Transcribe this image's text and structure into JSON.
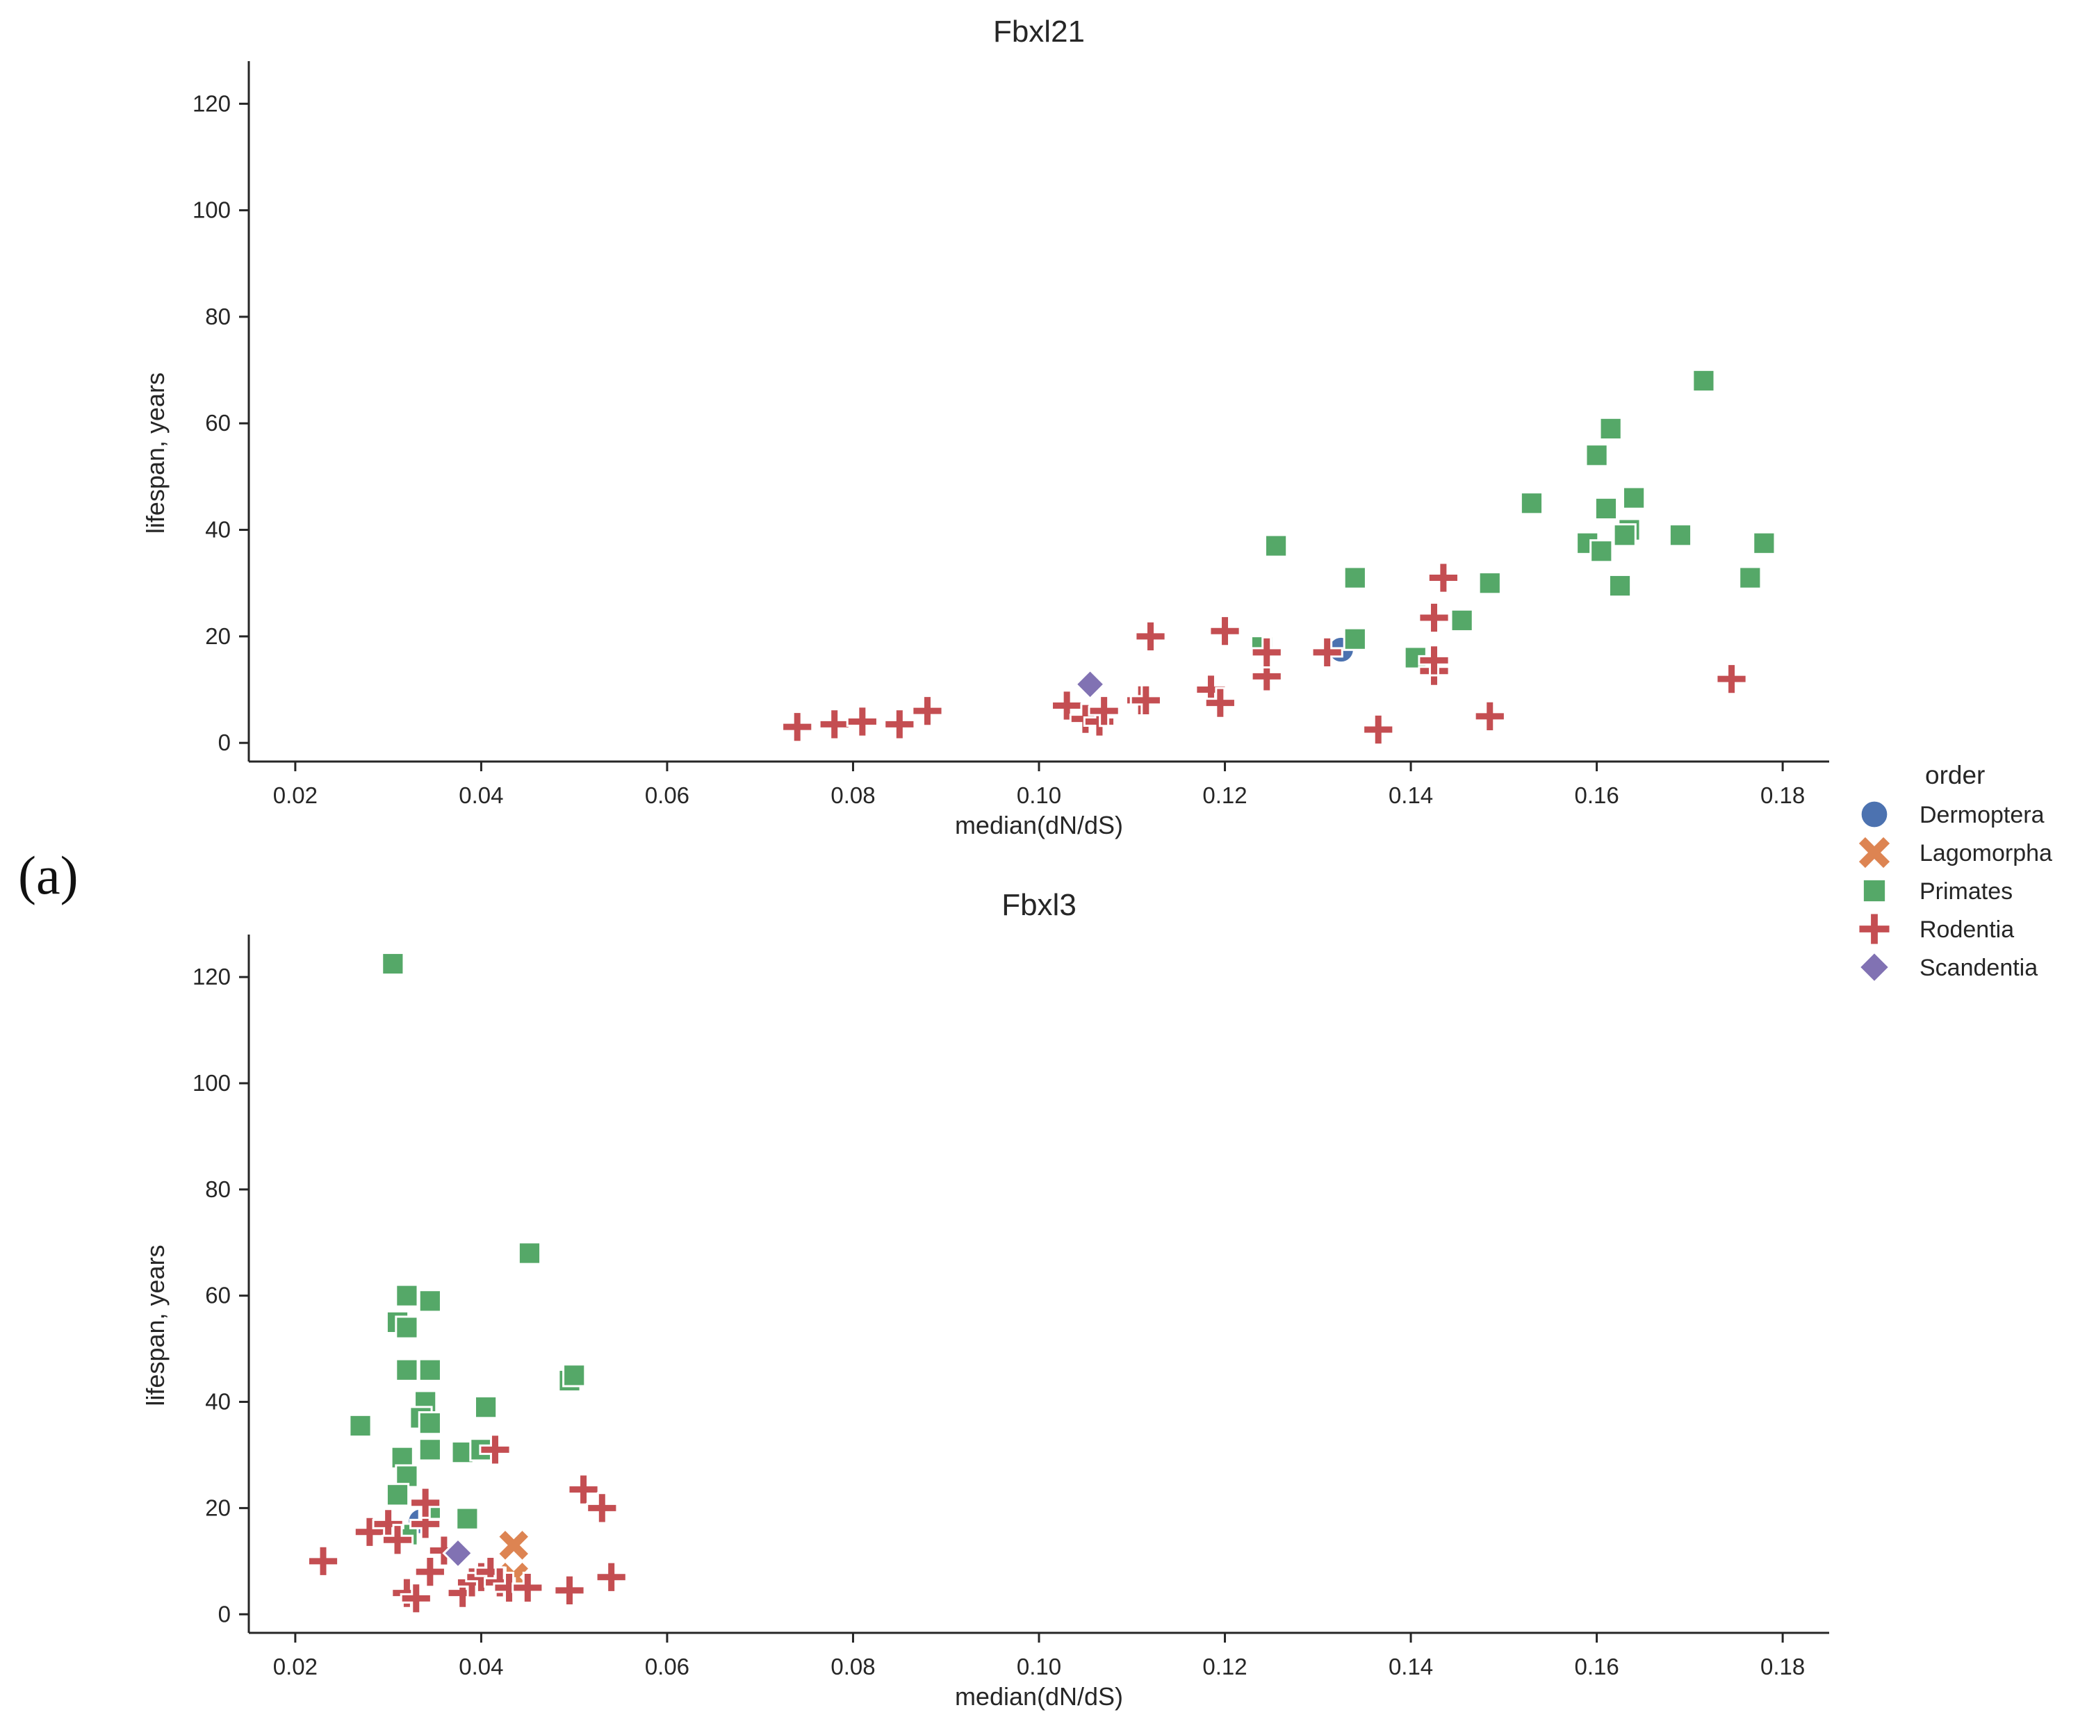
{
  "figure": {
    "panel_label": "(a)",
    "legend_title": "order"
  },
  "categories": [
    {
      "name": "Dermoptera",
      "marker": "circle",
      "color": "#4c72b0"
    },
    {
      "name": "Lagomorpha",
      "marker": "x",
      "color": "#dd8452"
    },
    {
      "name": "Primates",
      "marker": "square",
      "color": "#55a868"
    },
    {
      "name": "Rodentia",
      "marker": "plus",
      "color": "#c44e52"
    },
    {
      "name": "Scandentia",
      "marker": "diamond",
      "color": "#8172b3"
    }
  ],
  "chart_data": [
    {
      "type": "scatter",
      "title": "Fbxl21",
      "xlabel": "median(dN/dS)",
      "ylabel": "lifespan, years",
      "xlim": [
        0.015,
        0.185
      ],
      "ylim": [
        -3.5,
        128
      ],
      "xticks": [
        "0.02",
        "0.04",
        "0.06",
        "0.08",
        "0.10",
        "0.12",
        "0.14",
        "0.16",
        "0.18"
      ],
      "yticks": [
        "0",
        "20",
        "40",
        "60",
        "80",
        "100",
        "120"
      ],
      "series": [
        {
          "name": "Dermoptera",
          "points": [
            [
              0.1325,
              17.5
            ]
          ]
        },
        {
          "name": "Lagomorpha",
          "points": []
        },
        {
          "name": "Primates",
          "points": [
            [
              0.1715,
              68
            ],
            [
              0.1615,
              59
            ],
            [
              0.16,
              54
            ],
            [
              0.153,
              45
            ],
            [
              0.164,
              46
            ],
            [
              0.161,
              44
            ],
            [
              0.159,
              37.5
            ],
            [
              0.1605,
              36
            ],
            [
              0.1635,
              40
            ],
            [
              0.163,
              39
            ],
            [
              0.169,
              39
            ],
            [
              0.178,
              37.5
            ],
            [
              0.1765,
              31
            ],
            [
              0.1625,
              29.5
            ],
            [
              0.1255,
              37
            ],
            [
              0.134,
              31
            ],
            [
              0.1485,
              30
            ],
            [
              0.1455,
              23
            ],
            [
              0.134,
              19.5
            ],
            [
              0.124,
              18
            ],
            [
              0.1405,
              16
            ]
          ]
        },
        {
          "name": "Rodentia",
          "points": [
            [
              0.074,
              3
            ],
            [
              0.078,
              3.5
            ],
            [
              0.081,
              4
            ],
            [
              0.085,
              3.5
            ],
            [
              0.088,
              6
            ],
            [
              0.103,
              7
            ],
            [
              0.105,
              4.5
            ],
            [
              0.1065,
              4
            ],
            [
              0.107,
              6
            ],
            [
              0.111,
              8
            ],
            [
              0.1115,
              8
            ],
            [
              0.112,
              20
            ],
            [
              0.1185,
              10
            ],
            [
              0.1195,
              7.5
            ],
            [
              0.12,
              21
            ],
            [
              0.1245,
              12.5
            ],
            [
              0.1245,
              17
            ],
            [
              0.131,
              17
            ],
            [
              0.1365,
              2.5
            ],
            [
              0.1425,
              13.5
            ],
            [
              0.1425,
              15.5
            ],
            [
              0.1425,
              23.5
            ],
            [
              0.1435,
              31
            ],
            [
              0.1485,
              5
            ],
            [
              0.1745,
              12
            ]
          ]
        },
        {
          "name": "Scandentia",
          "points": [
            [
              0.1055,
              11
            ]
          ]
        }
      ]
    },
    {
      "type": "scatter",
      "title": "Fbxl3",
      "xlabel": "median(dN/dS)",
      "ylabel": "lifespan, years",
      "xlim": [
        0.015,
        0.185
      ],
      "ylim": [
        -3.5,
        128
      ],
      "xticks": [
        "0.02",
        "0.04",
        "0.06",
        "0.08",
        "0.10",
        "0.12",
        "0.14",
        "0.16",
        "0.18"
      ],
      "yticks": [
        "0",
        "20",
        "40",
        "60",
        "80",
        "100",
        "120"
      ],
      "series": [
        {
          "name": "Dermoptera",
          "points": [
            [
              0.0335,
              17.5
            ]
          ]
        },
        {
          "name": "Lagomorpha",
          "points": [
            [
              0.0435,
              13
            ],
            [
              0.0435,
              7
            ]
          ]
        },
        {
          "name": "Primates",
          "points": [
            [
              0.0305,
              122.5
            ],
            [
              0.0452,
              68
            ],
            [
              0.032,
              60
            ],
            [
              0.031,
              55
            ],
            [
              0.032,
              54
            ],
            [
              0.0345,
              59
            ],
            [
              0.032,
              46
            ],
            [
              0.0345,
              46
            ],
            [
              0.0495,
              44
            ],
            [
              0.05,
              45
            ],
            [
              0.034,
              40
            ],
            [
              0.0405,
              39
            ],
            [
              0.0335,
              37
            ],
            [
              0.0345,
              36
            ],
            [
              0.027,
              35.5
            ],
            [
              0.0315,
              29.5
            ],
            [
              0.0345,
              31
            ],
            [
              0.038,
              30.5
            ],
            [
              0.04,
              31
            ],
            [
              0.032,
              26
            ],
            [
              0.031,
              22.5
            ],
            [
              0.0345,
              20
            ],
            [
              0.0385,
              18
            ],
            [
              0.032,
              15
            ]
          ]
        },
        {
          "name": "Rodentia",
          "points": [
            [
              0.023,
              10
            ],
            [
              0.028,
              15.5
            ],
            [
              0.03,
              17
            ],
            [
              0.031,
              14
            ],
            [
              0.032,
              4
            ],
            [
              0.033,
              3
            ],
            [
              0.034,
              17
            ],
            [
              0.034,
              21
            ],
            [
              0.0345,
              8
            ],
            [
              0.036,
              12
            ],
            [
              0.038,
              4
            ],
            [
              0.039,
              6
            ],
            [
              0.04,
              7
            ],
            [
              0.041,
              8
            ],
            [
              0.0415,
              31
            ],
            [
              0.042,
              6
            ],
            [
              0.043,
              5
            ],
            [
              0.045,
              5
            ],
            [
              0.0495,
              4.5
            ],
            [
              0.051,
              23.5
            ],
            [
              0.053,
              20
            ],
            [
              0.054,
              7
            ]
          ]
        },
        {
          "name": "Scandentia",
          "points": [
            [
              0.0375,
              11.5
            ]
          ]
        }
      ]
    }
  ]
}
